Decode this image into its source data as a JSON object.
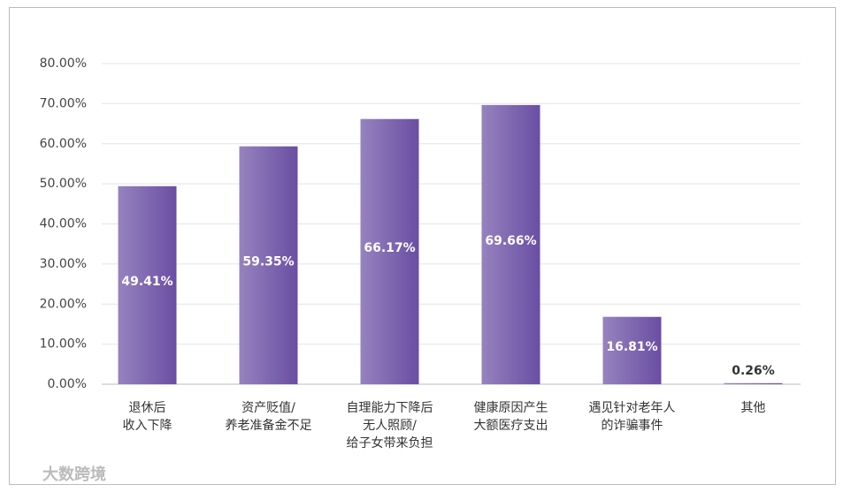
{
  "chart_data": {
    "type": "bar",
    "categories": [
      [
        "退休后",
        "收入下降"
      ],
      [
        "资产贬值/",
        "养老准备金不足"
      ],
      [
        "自理能力下降后",
        "无人照顾/",
        "给子女带来负担"
      ],
      [
        "健康原因产生",
        "大额医疗支出"
      ],
      [
        "遇见针对老年人",
        "的诈骗事件"
      ],
      [
        "其他"
      ]
    ],
    "values": [
      49.41,
      59.35,
      66.17,
      69.66,
      16.81,
      0.26
    ],
    "value_labels": [
      "49.41%",
      "59.35%",
      "66.17%",
      "69.66%",
      "16.81%",
      "0.26%"
    ],
    "color": "#6a4ea3",
    "ylim": [
      0,
      80
    ],
    "yticks": [
      {
        "value": 0,
        "label": "0.00%"
      },
      {
        "value": 10,
        "label": "10.00%"
      },
      {
        "value": 20,
        "label": "20.00%"
      },
      {
        "value": 30,
        "label": "30.00%"
      },
      {
        "value": 40,
        "label": "40.00%"
      },
      {
        "value": 50,
        "label": "50.00%"
      },
      {
        "value": 60,
        "label": "60.00%"
      },
      {
        "value": 70,
        "label": "70.00%"
      },
      {
        "value": 80,
        "label": "80.00%"
      }
    ],
    "grid": true,
    "watermark": "大数跨境"
  }
}
